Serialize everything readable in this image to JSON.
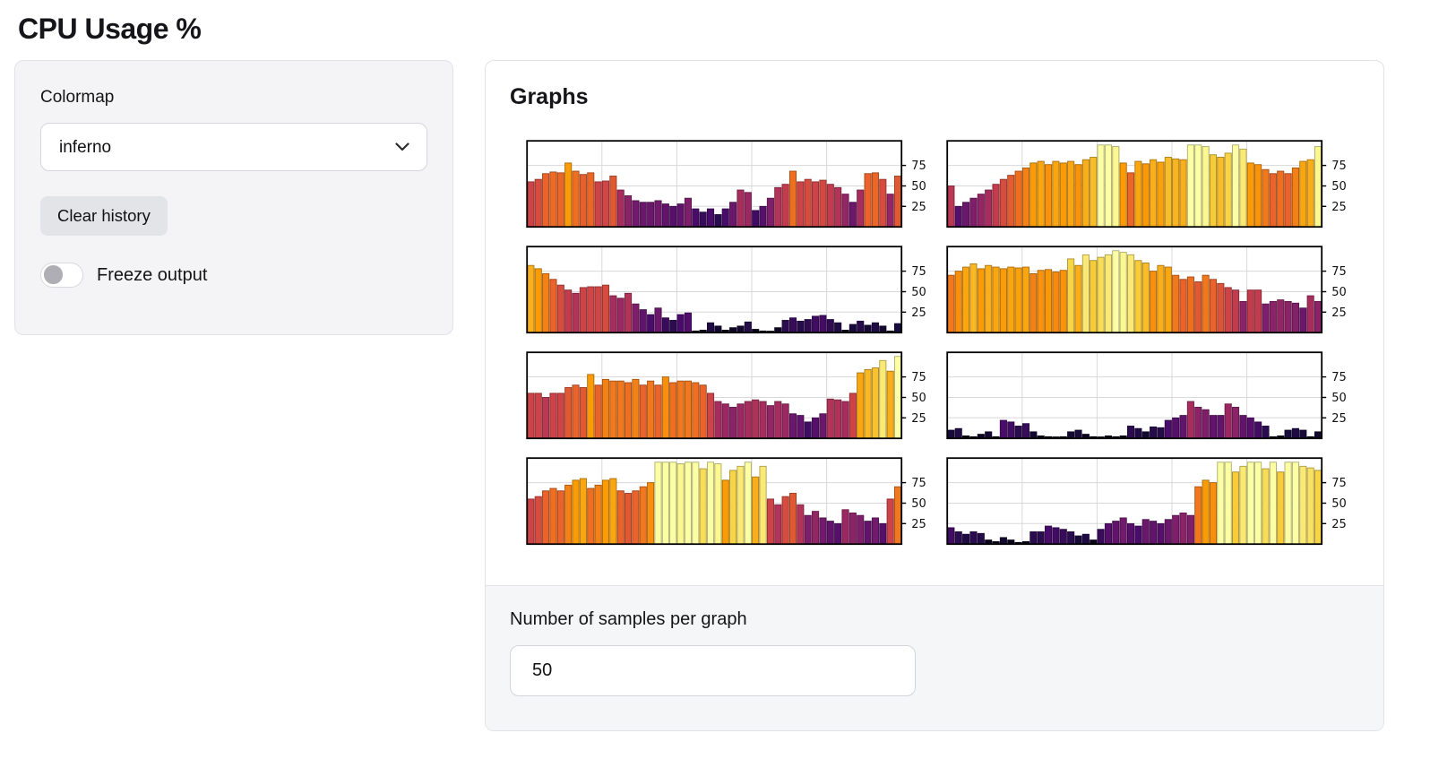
{
  "page_title": "CPU Usage %",
  "controls": {
    "colormap_label": "Colormap",
    "colormap_value": "inferno",
    "clear_button_label": "Clear history",
    "freeze_label": "Freeze output",
    "freeze_state": "off"
  },
  "graphs_panel": {
    "title": "Graphs",
    "samples_label": "Number of samples per graph",
    "samples_value": "50"
  },
  "colors": {
    "card_bg": "#f4f4f6",
    "footer_bg": "#f5f6f7",
    "border": "#e3e3e7",
    "grid_line": "#d8d8d8",
    "axis": "#000000",
    "colormap_low": "#000004",
    "colormap_mid": "#cf4446",
    "colormap_high": "#fcffa4"
  },
  "chart_data": {
    "type": "bar",
    "title": "",
    "xlabel": "",
    "ylabel": "",
    "colormap": "inferno",
    "color_norm": [
      0,
      100
    ],
    "ylim": [
      0,
      105
    ],
    "yticks": [
      25,
      50,
      75
    ],
    "ytick_side": "right",
    "grid": true,
    "samples_per_graph": 50,
    "layout": "4 rows x 2 columns",
    "charts": [
      {
        "name": "cpu-graph-1",
        "values": [
          55,
          58,
          65,
          67,
          66,
          78,
          68,
          64,
          66,
          55,
          56,
          62,
          45,
          38,
          32,
          30,
          30,
          32,
          28,
          25,
          28,
          35,
          22,
          18,
          22,
          15,
          22,
          30,
          45,
          42,
          20,
          25,
          35,
          48,
          52,
          68,
          55,
          58,
          55,
          57,
          52,
          48,
          40,
          30,
          45,
          65,
          66,
          58,
          40,
          62
        ]
      },
      {
        "name": "cpu-graph-2",
        "values": [
          50,
          25,
          30,
          35,
          40,
          45,
          52,
          58,
          63,
          68,
          72,
          78,
          80,
          76,
          80,
          78,
          80,
          76,
          82,
          85,
          100,
          100,
          98,
          78,
          66,
          80,
          77,
          82,
          79,
          85,
          83,
          82,
          100,
          100,
          98,
          88,
          85,
          90,
          100,
          95,
          78,
          76,
          70,
          65,
          68,
          65,
          72,
          80,
          82,
          98
        ]
      },
      {
        "name": "cpu-graph-3",
        "values": [
          82,
          78,
          72,
          65,
          58,
          52,
          48,
          55,
          56,
          56,
          58,
          45,
          42,
          48,
          35,
          28,
          22,
          30,
          18,
          15,
          22,
          24,
          2,
          3,
          12,
          8,
          3,
          6,
          8,
          13,
          4,
          2,
          1,
          6,
          15,
          18,
          14,
          16,
          20,
          21,
          16,
          12,
          3,
          10,
          14,
          9,
          12,
          8,
          2,
          11
        ]
      },
      {
        "name": "cpu-graph-4",
        "values": [
          70,
          75,
          80,
          84,
          78,
          82,
          80,
          78,
          80,
          79,
          80,
          72,
          76,
          77,
          74,
          76,
          90,
          82,
          95,
          88,
          92,
          95,
          100,
          98,
          95,
          88,
          85,
          75,
          82,
          80,
          70,
          65,
          68,
          62,
          70,
          65,
          60,
          55,
          52,
          38,
          52,
          52,
          35,
          38,
          40,
          38,
          36,
          30,
          45,
          38
        ]
      },
      {
        "name": "cpu-graph-5",
        "values": [
          55,
          55,
          50,
          55,
          55,
          62,
          65,
          62,
          78,
          65,
          72,
          70,
          70,
          68,
          72,
          65,
          70,
          65,
          75,
          68,
          70,
          70,
          68,
          65,
          55,
          45,
          42,
          38,
          42,
          45,
          47,
          45,
          40,
          45,
          42,
          30,
          28,
          20,
          25,
          30,
          48,
          47,
          45,
          55,
          80,
          84,
          86,
          95,
          82,
          100
        ]
      },
      {
        "name": "cpu-graph-6",
        "values": [
          10,
          12,
          3,
          2,
          5,
          8,
          2,
          22,
          20,
          15,
          18,
          8,
          3,
          2,
          1,
          2,
          8,
          10,
          5,
          2,
          1,
          3,
          2,
          3,
          15,
          12,
          8,
          14,
          13,
          22,
          25,
          28,
          45,
          38,
          35,
          28,
          28,
          42,
          38,
          28,
          25,
          20,
          15,
          2,
          3,
          10,
          12,
          10,
          2,
          8
        ]
      },
      {
        "name": "cpu-graph-7",
        "values": [
          55,
          58,
          65,
          68,
          65,
          72,
          78,
          80,
          68,
          72,
          78,
          80,
          65,
          62,
          65,
          70,
          75,
          100,
          100,
          100,
          98,
          100,
          100,
          92,
          100,
          98,
          78,
          90,
          95,
          100,
          82,
          95,
          55,
          48,
          58,
          62,
          48,
          35,
          40,
          32,
          28,
          25,
          42,
          38,
          35,
          28,
          32,
          25,
          55,
          70
        ]
      },
      {
        "name": "cpu-graph-8",
        "values": [
          20,
          15,
          12,
          15,
          13,
          5,
          3,
          8,
          5,
          2,
          3,
          15,
          15,
          22,
          20,
          18,
          15,
          10,
          12,
          5,
          18,
          25,
          28,
          32,
          25,
          22,
          30,
          28,
          25,
          30,
          35,
          38,
          35,
          70,
          78,
          75,
          100,
          100,
          88,
          95,
          100,
          100,
          92,
          100,
          88,
          100,
          100,
          95,
          93,
          90
        ]
      }
    ]
  }
}
